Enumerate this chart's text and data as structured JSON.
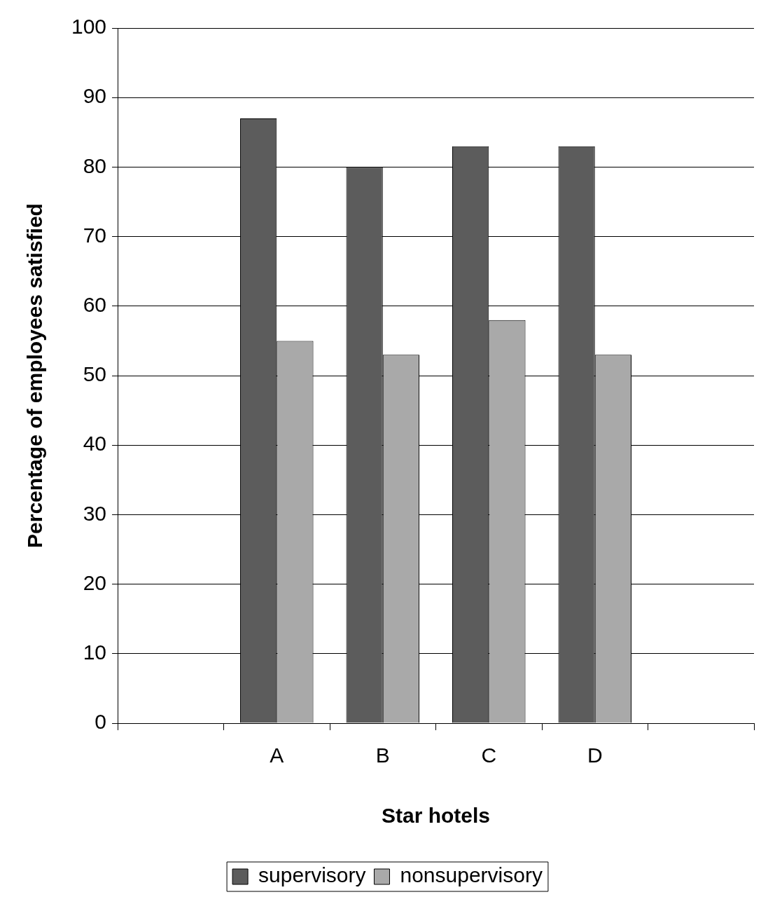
{
  "chart_data": {
    "type": "bar",
    "xlabel": "Star hotels",
    "ylabel": "Percentage of employees satisfied",
    "categories": [
      null,
      "A",
      "B",
      "C",
      "D",
      null
    ],
    "series": [
      {
        "name": "supervisory",
        "color": "#5c5c5c",
        "values": [
          null,
          87,
          80,
          83,
          83,
          null
        ]
      },
      {
        "name": "nonsupervisory",
        "color": "#a9a9a9",
        "values": [
          null,
          55,
          53,
          58,
          53,
          null
        ]
      }
    ],
    "ylim": [
      0,
      100
    ],
    "yticks": [
      0,
      10,
      20,
      30,
      40,
      50,
      60,
      70,
      80,
      90,
      100
    ],
    "grid": "y",
    "legend": "bottom"
  }
}
